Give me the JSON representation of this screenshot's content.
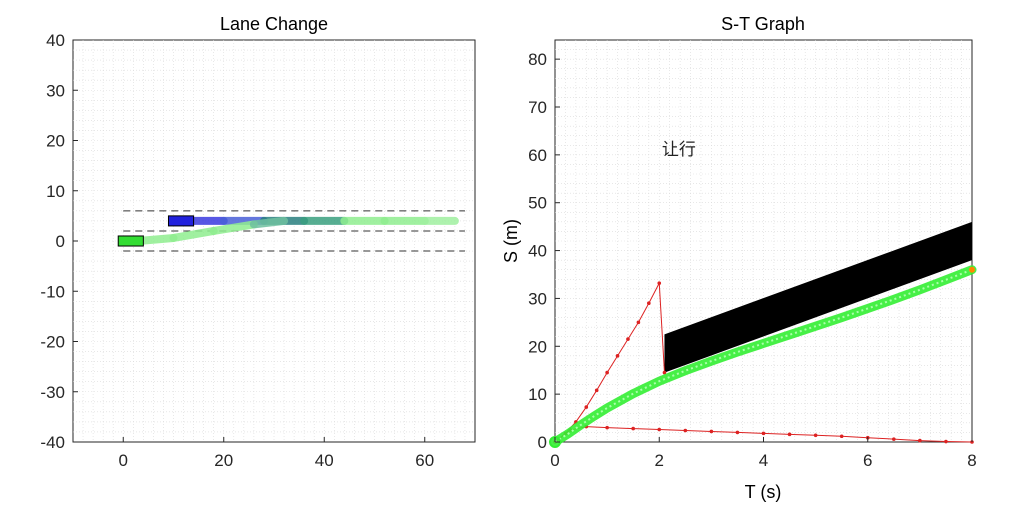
{
  "chart_data": [
    {
      "type": "line",
      "title": "Lane Change",
      "xlabel": "",
      "ylabel": "",
      "xlim": [
        -10,
        70
      ],
      "ylim": [
        -40,
        40
      ],
      "xticks": [
        "0",
        "20",
        "40",
        "60"
      ],
      "yticks": [
        "40",
        "30",
        "20",
        "10",
        "0",
        "-10",
        "-20",
        "-30",
        "-40"
      ],
      "grid": "minor-dotted",
      "lane_lines_y": [
        6,
        2,
        -2
      ],
      "lane_lines_x": [
        0,
        68
      ],
      "vehicles": [
        {
          "name_icon": "blue-vehicle-rect",
          "x": [
            9,
            14
          ],
          "y": [
            3,
            5
          ],
          "color": "#2222dd"
        },
        {
          "name_icon": "green-vehicle-rect",
          "x": [
            -1,
            4
          ],
          "y": [
            -1,
            1
          ],
          "color": "#33dd33"
        }
      ],
      "trajectories": [
        {
          "x": [
            14,
            20,
            28,
            36,
            44,
            52,
            60,
            66
          ],
          "y": [
            4,
            4,
            4,
            4,
            4,
            4,
            4,
            4
          ],
          "colors": [
            "#3a3ae0",
            "#4a60d8",
            "#2a8080",
            "#3aa080",
            "#90ee90",
            "#90ee90",
            "#a0f0a0",
            "#b8f5b8"
          ]
        },
        {
          "x": [
            3,
            10,
            18,
            26,
            32
          ],
          "y": [
            0,
            0.6,
            2,
            3.3,
            4
          ],
          "colors": [
            "#90ee90",
            "#90ee90",
            "#90ee90",
            "#6fc0a0",
            "#4a8f9f"
          ]
        }
      ]
    },
    {
      "type": "line",
      "title": "S-T Graph",
      "xlabel": "T (s)",
      "ylabel": "S (m)",
      "xlim": [
        0,
        8
      ],
      "ylim": [
        0,
        84
      ],
      "xticks": [
        "0",
        "2",
        "4",
        "6",
        "8"
      ],
      "yticks": [
        "80",
        "70",
        "60",
        "50",
        "40",
        "30",
        "20",
        "10",
        "0"
      ],
      "grid": "minor-dotted",
      "annotation": {
        "text": "让行",
        "x": 2.05,
        "y": 60
      },
      "obstacle": {
        "polygon": [
          [
            2.1,
            22.5
          ],
          [
            8.0,
            46.0
          ],
          [
            8.0,
            38.0
          ],
          [
            2.1,
            14.5
          ]
        ],
        "color": "#000000"
      },
      "series": [
        {
          "name": "",
          "color": "#dd2222",
          "x": [
            0,
            0.2,
            0.4,
            0.6,
            0.8,
            1.0,
            1.2,
            1.4,
            1.6,
            1.8,
            2.0,
            2.1
          ],
          "y": [
            0,
            1.8,
            4.2,
            7.3,
            10.8,
            14.5,
            18.0,
            21.5,
            25.0,
            29.0,
            33.2,
            14.5
          ]
        },
        {
          "name": "",
          "color": "#dd2222",
          "x": [
            0,
            0.3,
            0.6,
            1,
            1.5,
            2,
            2.5,
            3,
            3.5,
            4,
            4.5,
            5,
            5.5,
            6,
            6.5,
            7,
            7.5,
            8
          ],
          "y": [
            0,
            2.5,
            3.2,
            3.0,
            2.8,
            2.6,
            2.4,
            2.2,
            2.0,
            1.8,
            1.6,
            1.4,
            1.2,
            0.9,
            0.6,
            0.3,
            0.1,
            0
          ]
        },
        {
          "name": "",
          "color": "#33ee33",
          "x": [
            0,
            0.25,
            0.5,
            0.75,
            1,
            1.5,
            2,
            2.5,
            3,
            3.5,
            4,
            4.5,
            5,
            5.5,
            6,
            6.5,
            7,
            7.5,
            8
          ],
          "y": [
            0,
            1.7,
            3.6,
            5.4,
            7.1,
            10.1,
            12.7,
            14.9,
            16.9,
            18.8,
            20.6,
            22.4,
            24.2,
            26.0,
            27.9,
            29.8,
            31.8,
            33.9,
            36.0
          ]
        }
      ]
    }
  ]
}
